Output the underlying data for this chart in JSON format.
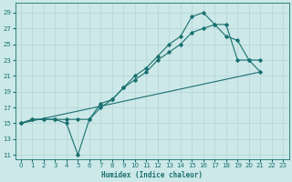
{
  "xlabel": "Humidex (Indice chaleur)",
  "bg_color": "#cce8e8",
  "grid_color": "#aacccc",
  "line_color": "#1a7070",
  "xlim": [
    -0.5,
    23.5
  ],
  "ylim": [
    10.5,
    30.2
  ],
  "xticks": [
    0,
    1,
    2,
    3,
    4,
    5,
    6,
    7,
    8,
    9,
    10,
    11,
    12,
    13,
    14,
    15,
    16,
    17,
    18,
    19,
    20,
    21,
    22,
    23
  ],
  "yticks": [
    11,
    13,
    15,
    17,
    19,
    21,
    23,
    25,
    27,
    29
  ],
  "series_zigzag_x": [
    0,
    1,
    2,
    3,
    4,
    5,
    6,
    7,
    8,
    9,
    10,
    11,
    12,
    13,
    14,
    15,
    16,
    17,
    18,
    19,
    20,
    21
  ],
  "series_zigzag_y": [
    15,
    15.5,
    15.5,
    15.5,
    15,
    11,
    15.5,
    17.5,
    18,
    19.5,
    21,
    22,
    23.5,
    25,
    26,
    28.5,
    29,
    27.5,
    27.5,
    23,
    23,
    21.5
  ],
  "series_middle_x": [
    0,
    1,
    2,
    3,
    4,
    5,
    6,
    7,
    8,
    9,
    10,
    11,
    12,
    13,
    14,
    15,
    16,
    17,
    18,
    19,
    20,
    21
  ],
  "series_middle_y": [
    15,
    15.5,
    15.5,
    15.5,
    15.5,
    15.5,
    15.5,
    17,
    18,
    19.5,
    20.5,
    21.5,
    23,
    24,
    25,
    26.5,
    27,
    27.5,
    26,
    25.5,
    23,
    23
  ],
  "series_line_x": [
    0,
    21
  ],
  "series_line_y": [
    15,
    21.5
  ]
}
